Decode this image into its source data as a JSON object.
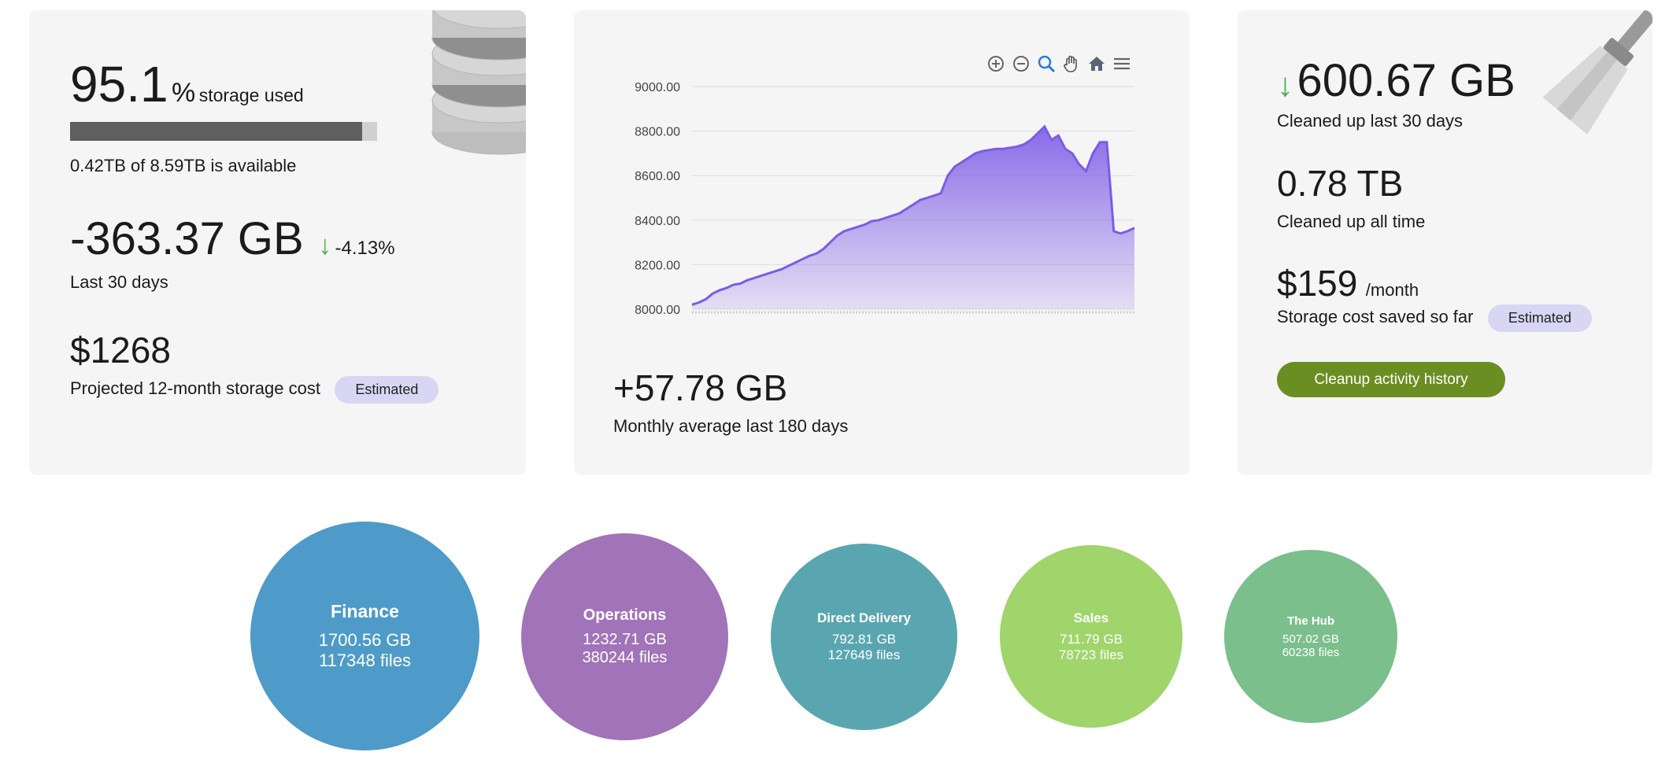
{
  "storage": {
    "percent_used": "95.1",
    "percent_sign": "%",
    "percent_label": "storage used",
    "usage_fraction": 0.951,
    "available_text": "0.42TB of 8.59TB is available",
    "change_value": "-363.37 GB",
    "change_percent": "-4.13%",
    "change_period": "Last 30 days",
    "projected_cost": "$1268",
    "projected_label": "Projected 12-month storage cost",
    "estimated_badge": "Estimated",
    "icon": "database-icon"
  },
  "growth": {
    "monthly_average": "+57.78 GB",
    "monthly_label": "Monthly average last 180 days",
    "toolbar_icons": [
      "zoom-in-icon",
      "zoom-out-icon",
      "zoom-select-icon",
      "pan-hand-icon",
      "home-icon",
      "menu-icon"
    ]
  },
  "chart_data": {
    "type": "area",
    "yticks": [
      "9000.00",
      "8800.00",
      "8600.00",
      "8400.00",
      "8200.00",
      "8000.00"
    ],
    "ylim": [
      8000,
      9000
    ],
    "color": "#7b5ce6",
    "series": [
      {
        "values": [
          8020,
          8030,
          8045,
          8070,
          8085,
          8095,
          8110,
          8115,
          8130,
          8140,
          8150,
          8160,
          8170,
          8180,
          8195,
          8210,
          8225,
          8240,
          8250,
          8270,
          8300,
          8330,
          8350,
          8360,
          8370,
          8380,
          8395,
          8400,
          8410,
          8420,
          8430,
          8450,
          8470,
          8490,
          8500,
          8510,
          8520,
          8600,
          8640,
          8660,
          8680,
          8700,
          8710,
          8715,
          8720,
          8720,
          8725,
          8730,
          8740,
          8760,
          8790,
          8820,
          8760,
          8780,
          8720,
          8700,
          8650,
          8620,
          8700,
          8750,
          8750,
          8350,
          8340,
          8350,
          8365
        ]
      }
    ]
  },
  "cleanup": {
    "cleaned_30_value": "600.67 GB",
    "cleaned_30_label": "Cleaned up last 30 days",
    "cleaned_all_value": "0.78 TB",
    "cleaned_all_label": "Cleaned up all time",
    "saved_value": "$159",
    "saved_unit": "/month",
    "saved_label": "Storage cost saved so far",
    "estimated_badge": "Estimated",
    "history_button": "Cleanup activity history",
    "icon": "broom-icon"
  },
  "departments": [
    {
      "name": "Finance",
      "size": "1700.56 GB",
      "files": "117348 files",
      "color": "#4e9bc9"
    },
    {
      "name": "Operations",
      "size": "1232.71 GB",
      "files": "380244 files",
      "color": "#a173b8"
    },
    {
      "name": "Direct Delivery",
      "size": "792.81 GB",
      "files": "127649 files",
      "color": "#5aa6b0"
    },
    {
      "name": "Sales",
      "size": "711.79 GB",
      "files": "78723 files",
      "color": "#9fd56b"
    },
    {
      "name": "The Hub",
      "size": "507.02 GB",
      "files": "60238 files",
      "color": "#7bbf8c"
    }
  ]
}
